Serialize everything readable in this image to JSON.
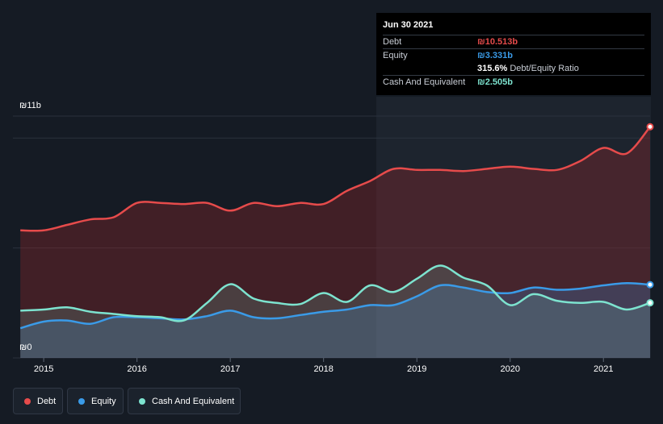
{
  "tooltip": {
    "date": "Jun 30 2021",
    "rows": [
      {
        "label": "Debt",
        "value": "₪10.513b",
        "color": "#e64b4b"
      },
      {
        "label": "Equity",
        "value": "₪3.331b",
        "color": "#3a9be8"
      },
      {
        "label": "",
        "value": "315.6%",
        "suffix": "Debt/Equity Ratio",
        "color": "#ffffff"
      },
      {
        "label": "Cash And Equivalent",
        "value": "₪2.505b",
        "color": "#7de3cf"
      }
    ]
  },
  "legend": [
    {
      "label": "Debt",
      "color": "#e64b4b"
    },
    {
      "label": "Equity",
      "color": "#3a9be8"
    },
    {
      "label": "Cash And Equivalent",
      "color": "#7de3cf"
    }
  ],
  "chart_data": {
    "type": "area",
    "title": "",
    "xlabel": "",
    "ylabel": "",
    "y_tick_labels": [
      "₪11b",
      "₪0"
    ],
    "ylim": [
      0,
      11
    ],
    "xlim": [
      2014.67,
      2021.5
    ],
    "x_ticks": [
      "2015",
      "2016",
      "2017",
      "2018",
      "2019",
      "2020",
      "2021"
    ],
    "grid": true,
    "legend_position": "bottom-left",
    "series": [
      {
        "name": "Debt",
        "color": "#e64b4b",
        "x": [
          2014.75,
          2015.0,
          2015.25,
          2015.5,
          2015.75,
          2016.0,
          2016.25,
          2016.5,
          2016.75,
          2017.0,
          2017.25,
          2017.5,
          2017.75,
          2018.0,
          2018.25,
          2018.5,
          2018.75,
          2019.0,
          2019.25,
          2019.5,
          2019.75,
          2020.0,
          2020.25,
          2020.5,
          2020.75,
          2021.0,
          2021.25,
          2021.5
        ],
        "values": [
          5.8,
          5.8,
          6.05,
          6.3,
          6.4,
          7.05,
          7.05,
          7.0,
          7.05,
          6.7,
          7.05,
          6.9,
          7.05,
          7.0,
          7.6,
          8.05,
          8.6,
          8.55,
          8.55,
          8.5,
          8.6,
          8.7,
          8.6,
          8.55,
          8.95,
          9.55,
          9.3,
          10.513
        ]
      },
      {
        "name": "Equity",
        "color": "#3a9be8",
        "x": [
          2014.75,
          2015.0,
          2015.25,
          2015.5,
          2015.75,
          2016.0,
          2016.25,
          2016.5,
          2016.75,
          2017.0,
          2017.25,
          2017.5,
          2017.75,
          2018.0,
          2018.25,
          2018.5,
          2018.75,
          2019.0,
          2019.25,
          2019.5,
          2019.75,
          2020.0,
          2020.25,
          2020.5,
          2020.75,
          2021.0,
          2021.25,
          2021.5
        ],
        "values": [
          1.35,
          1.65,
          1.7,
          1.55,
          1.85,
          1.85,
          1.8,
          1.75,
          1.9,
          2.15,
          1.85,
          1.8,
          1.95,
          2.1,
          2.2,
          2.4,
          2.4,
          2.8,
          3.3,
          3.2,
          3.0,
          2.95,
          3.2,
          3.1,
          3.15,
          3.3,
          3.4,
          3.331
        ]
      },
      {
        "name": "Cash And Equivalent",
        "color": "#7de3cf",
        "x": [
          2014.75,
          2015.0,
          2015.25,
          2015.5,
          2015.75,
          2016.0,
          2016.25,
          2016.5,
          2016.75,
          2017.0,
          2017.25,
          2017.5,
          2017.75,
          2018.0,
          2018.25,
          2018.5,
          2018.75,
          2019.0,
          2019.25,
          2019.5,
          2019.75,
          2020.0,
          2020.25,
          2020.5,
          2020.75,
          2021.0,
          2021.25,
          2021.5
        ],
        "values": [
          2.15,
          2.2,
          2.3,
          2.1,
          2.0,
          1.9,
          1.85,
          1.7,
          2.5,
          3.35,
          2.7,
          2.5,
          2.45,
          2.95,
          2.55,
          3.3,
          3.0,
          3.6,
          4.2,
          3.65,
          3.3,
          2.4,
          2.9,
          2.6,
          2.5,
          2.55,
          2.2,
          2.505
        ]
      }
    ]
  }
}
